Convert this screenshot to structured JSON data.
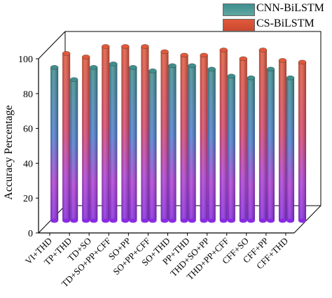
{
  "chart_data": {
    "type": "bar",
    "style": "3d-cylinder",
    "categories": [
      "VI+THD",
      "TP+THD",
      "TD+SO",
      "TD+SO+PP+CFF",
      "SO+PP",
      "SO+PP+CFF",
      "SO+THD",
      "PP+THD",
      "THD+SO+PP",
      "THD+PP+CFF",
      "CFF+SO",
      "CFF+PP",
      "CFF+THD"
    ],
    "series": [
      {
        "name": "CNN-BiLSTM",
        "values": [
          88,
          81,
          88,
          90,
          88,
          86,
          89,
          89,
          87,
          83,
          82,
          87,
          82
        ],
        "color_top": "#3f8f8f",
        "color_bottom": "#8a2be2"
      },
      {
        "name": "CS-BiLSTM",
        "values": [
          96,
          94,
          100,
          100,
          100,
          97,
          95,
          95,
          98,
          93,
          98,
          92,
          91
        ],
        "color_top": "#e2583a",
        "color_bottom": "#8a2be2"
      }
    ],
    "ylabel": "Accuracy Percentage",
    "xlabel": "",
    "title": "",
    "ylim": [
      0,
      100
    ],
    "yticks": [
      0,
      20,
      40,
      60,
      80,
      100
    ],
    "legend_position": "top-right",
    "grid": false
  }
}
